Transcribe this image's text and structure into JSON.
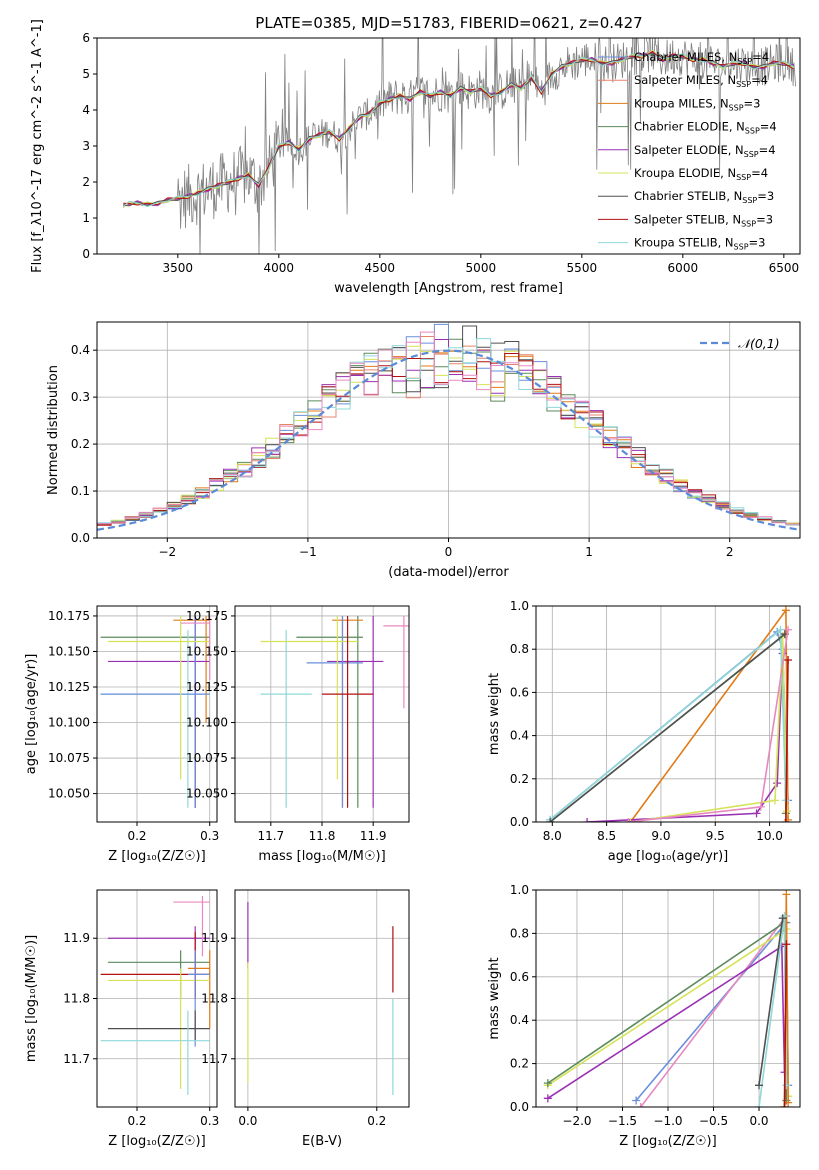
{
  "figure_title": "PLATE=0385, MJD=51783, FIBERID=0621, z=0.427",
  "colors": {
    "chabrier_miles": "#6a8fdc",
    "salpeter_miles": "#e7836c",
    "kroupa_miles": "#e07b18",
    "chabrier_elodie": "#5b8a5b",
    "salpeter_elodie": "#9b30b5",
    "kroupa_elodie": "#d6e35a",
    "chabrier_stelib": "#505050",
    "salpeter_stelib": "#b01010",
    "kroupa_stelib": "#8fd8d8",
    "pink": "#e888c0",
    "gauss": "#5b8ad8",
    "data_spectrum": "#808080"
  },
  "chart_data": [
    {
      "id": "spectrum",
      "type": "line",
      "xlabel": "wavelength [Angstrom, rest frame]",
      "ylabel": "Flux [f_λ10^-17 erg cm^-2 s^-1 A^-1]",
      "xlim": [
        3100,
        6580
      ],
      "ylim": [
        0,
        6
      ],
      "xticks": [
        3500,
        4000,
        4500,
        5000,
        5500,
        6000,
        6500
      ],
      "yticks": [
        0,
        1,
        2,
        3,
        4,
        5,
        6
      ],
      "legend_position": "upper-right",
      "legend": [
        "Chabrier MILES, N_SSP=4",
        "Salpeter MILES, N_SSP=4",
        "Kroupa MILES, N_SSP=3",
        "Chabrier ELODIE, N_SSP=4",
        "Salpeter ELODIE, N_SSP=4",
        "Kroupa ELODIE, N_SSP=4",
        "Chabrier STELIB, N_SSP=3",
        "Salpeter STELIB, N_SSP=3",
        "Kroupa STELIB, N_SSP=3"
      ],
      "model_curve": {
        "x": [
          3230,
          3260,
          3300,
          3350,
          3400,
          3450,
          3500,
          3550,
          3600,
          3650,
          3700,
          3750,
          3800,
          3850,
          3900,
          3950,
          4000,
          4050,
          4100,
          4150,
          4200,
          4250,
          4300,
          4350,
          4400,
          4450,
          4500,
          4550,
          4600,
          4650,
          4700,
          4750,
          4800,
          4850,
          4900,
          4950,
          5000,
          5050,
          5100,
          5150,
          5200,
          5250,
          5300,
          5350,
          5400,
          5450,
          5500,
          5550,
          5600,
          5650,
          5700,
          5750,
          5800,
          5850,
          5900,
          5950,
          6000,
          6050,
          6100,
          6150,
          6200,
          6250,
          6300,
          6350,
          6400,
          6450,
          6500,
          6550
        ],
        "y": [
          1.35,
          1.4,
          1.42,
          1.38,
          1.4,
          1.5,
          1.55,
          1.6,
          1.7,
          1.8,
          1.9,
          2.0,
          2.1,
          2.2,
          1.9,
          2.4,
          3.0,
          3.1,
          2.9,
          3.2,
          3.3,
          3.4,
          3.2,
          3.5,
          3.8,
          3.9,
          4.2,
          4.3,
          4.4,
          4.3,
          4.5,
          4.4,
          4.5,
          4.4,
          4.6,
          4.5,
          4.6,
          4.4,
          4.5,
          4.7,
          4.6,
          4.9,
          4.5,
          5.0,
          5.2,
          5.3,
          5.4,
          5.4,
          5.3,
          5.3,
          5.4,
          5.5,
          5.5,
          5.6,
          5.4,
          5.5,
          5.5,
          5.4,
          5.4,
          5.3,
          5.2,
          5.3,
          5.3,
          5.2,
          5.2,
          5.3,
          5.3,
          5.2
        ]
      }
    },
    {
      "id": "residuals",
      "type": "line",
      "xlabel": "(data-model)/error",
      "ylabel": "Normed distribution",
      "xlim": [
        -2.5,
        2.5
      ],
      "ylim": [
        0,
        0.46
      ],
      "xticks": [
        -2,
        -1,
        0,
        1,
        2
      ],
      "yticks": [
        0.0,
        0.1,
        0.2,
        0.3,
        0.4
      ],
      "legend_position": "upper-right",
      "legend": [
        "𝒩(0,1)"
      ],
      "grid": true
    },
    {
      "id": "age_vs_Z",
      "type": "scatter",
      "xlabel": "Z [log₁₀(Z/Z☉)]",
      "ylabel": "age  [log₁₀(age/yr)]",
      "xlim": [
        0.145,
        0.31
      ],
      "ylim": [
        10.03,
        10.182
      ],
      "xticks": [
        0.2,
        0.3
      ],
      "yticks": [
        10.05,
        10.075,
        10.1,
        10.125,
        10.15,
        10.175
      ],
      "grid": true,
      "points": [
        {
          "c": "chabrier_elodie",
          "x": 0.28,
          "y": 10.16,
          "xerr": [
            0.15,
            0.3
          ],
          "yerr": [
            10.04,
            10.175
          ]
        },
        {
          "c": "kroupa_miles",
          "x": 0.295,
          "y": 10.172,
          "xerr": [
            0.25,
            0.3
          ],
          "yerr": [
            10.1,
            10.175
          ]
        },
        {
          "c": "salpeter_elodie",
          "x": 0.28,
          "y": 10.143,
          "xerr": [
            0.16,
            0.3
          ],
          "yerr": [
            10.04,
            10.175
          ]
        },
        {
          "c": "kroupa_stelib",
          "x": 0.27,
          "y": 10.12,
          "xerr": [
            0.15,
            0.3
          ],
          "yerr": [
            10.04,
            10.165
          ]
        },
        {
          "c": "chabrier_miles",
          "x": 0.28,
          "y": 10.12,
          "xerr": [
            0.15,
            0.3
          ],
          "yerr": [
            10.04,
            10.175
          ]
        },
        {
          "c": "kroupa_elodie",
          "x": 0.26,
          "y": 10.157,
          "xerr": [
            0.16,
            0.3
          ],
          "yerr": [
            10.06,
            10.175
          ]
        },
        {
          "c": "pink",
          "x": 0.3,
          "y": 10.17,
          "xerr": [
            0.26,
            0.3
          ],
          "yerr": [
            10.13,
            10.175
          ]
        }
      ]
    },
    {
      "id": "age_vs_mass",
      "type": "scatter",
      "xlabel": "mass [log₁₀(M/M☉)]",
      "ylabel": "",
      "xlim": [
        11.63,
        11.97
      ],
      "ylim": [
        10.03,
        10.182
      ],
      "xticks": [
        11.7,
        11.8,
        11.9
      ],
      "yticks": [
        10.05,
        10.075,
        10.1,
        10.125,
        10.15,
        10.175
      ],
      "grid": true,
      "points": [
        {
          "c": "chabrier_elodie",
          "x": 11.87,
          "y": 10.16,
          "xerr": [
            11.75,
            11.88
          ],
          "yerr": [
            10.04,
            10.175
          ]
        },
        {
          "c": "kroupa_miles",
          "x": 11.84,
          "y": 10.172,
          "xerr": [
            11.82,
            11.88
          ],
          "yerr": [
            10.04,
            10.175
          ]
        },
        {
          "c": "salpeter_elodie",
          "x": 11.9,
          "y": 10.143,
          "xerr": [
            11.81,
            11.92
          ],
          "yerr": [
            10.04,
            10.175
          ]
        },
        {
          "c": "kroupa_stelib",
          "x": 11.73,
          "y": 10.12,
          "xerr": [
            11.68,
            11.78
          ],
          "yerr": [
            10.04,
            10.165
          ]
        },
        {
          "c": "chabrier_miles",
          "x": 11.84,
          "y": 10.142,
          "xerr": [
            11.77,
            11.88
          ],
          "yerr": [
            10.04,
            10.175
          ]
        },
        {
          "c": "kroupa_elodie",
          "x": 11.83,
          "y": 10.157,
          "xerr": [
            11.68,
            11.87
          ],
          "yerr": [
            10.06,
            10.175
          ]
        },
        {
          "c": "salpeter_stelib",
          "x": 11.85,
          "y": 10.12,
          "xerr": [
            11.8,
            11.9
          ],
          "yerr": [
            10.04,
            10.175
          ]
        },
        {
          "c": "pink",
          "x": 11.96,
          "y": 10.168,
          "xerr": [
            11.92,
            11.97
          ],
          "yerr": [
            10.11,
            10.175
          ]
        }
      ]
    },
    {
      "id": "massweight_vs_age",
      "type": "line",
      "xlabel": "age  [log₁₀(age/yr)]",
      "ylabel": "mass weight",
      "xlim": [
        7.85,
        10.28
      ],
      "ylim": [
        0,
        1.0
      ],
      "xticks": [
        8.0,
        8.5,
        9.0,
        9.5,
        10.0
      ],
      "yticks": [
        0.0,
        0.2,
        0.4,
        0.6,
        0.8,
        1.0
      ],
      "grid": true,
      "series": [
        {
          "c": "chabrier_miles",
          "x": [
            7.98,
            10.07,
            10.12,
            10.17
          ],
          "y": [
            0.01,
            0.88,
            0.8,
            0.1
          ]
        },
        {
          "c": "kroupa_miles",
          "x": [
            8.72,
            10.15,
            10.17
          ],
          "y": [
            0.0,
            0.98,
            0.01
          ]
        },
        {
          "c": "chabrier_elodie",
          "x": [
            7.98,
            10.12,
            10.15
          ],
          "y": [
            0.0,
            0.86,
            0.04
          ]
        },
        {
          "c": "salpeter_elodie",
          "x": [
            8.32,
            9.88,
            10.07,
            10.12
          ],
          "y": [
            0.0,
            0.04,
            0.18,
            0.78
          ]
        },
        {
          "c": "kroupa_elodie",
          "x": [
            8.72,
            10.05,
            10.12,
            10.16
          ],
          "y": [
            0.0,
            0.1,
            0.86,
            0.05
          ]
        },
        {
          "c": "kroupa_stelib",
          "x": [
            7.98,
            10.1,
            10.15
          ],
          "y": [
            0.01,
            0.89,
            0.1
          ]
        },
        {
          "c": "chabrier_stelib",
          "x": [
            7.98,
            10.14
          ],
          "y": [
            0.0,
            0.87
          ]
        },
        {
          "c": "salpeter_stelib",
          "x": [
            10.15,
            10.17
          ],
          "y": [
            0.0,
            0.75
          ]
        },
        {
          "c": "pink",
          "x": [
            8.7,
            9.92,
            10.17
          ],
          "y": [
            0.0,
            0.07,
            0.89
          ]
        }
      ]
    },
    {
      "id": "mass_vs_Z",
      "type": "scatter",
      "xlabel": "Z [log₁₀(Z/Z☉)]",
      "ylabel": "mass [log₁₀(M/M☉)]",
      "xlim": [
        0.145,
        0.31
      ],
      "ylim": [
        11.62,
        11.98
      ],
      "xticks": [
        0.2,
        0.3
      ],
      "yticks": [
        11.7,
        11.8,
        11.9
      ],
      "grid": true,
      "points": [
        {
          "c": "salpeter_elodie",
          "x": 0.28,
          "y": 11.9,
          "xerr": [
            0.16,
            0.3
          ],
          "yerr": [
            11.8,
            11.92
          ]
        },
        {
          "c": "pink",
          "x": 0.29,
          "y": 11.96,
          "xerr": [
            0.25,
            0.3
          ],
          "yerr": [
            11.87,
            11.97
          ]
        },
        {
          "c": "chabrier_elodie",
          "x": 0.26,
          "y": 11.86,
          "xerr": [
            0.16,
            0.3
          ],
          "yerr": [
            11.8,
            11.88
          ]
        },
        {
          "c": "kroupa_miles",
          "x": 0.3,
          "y": 11.85,
          "xerr": [
            0.27,
            0.3
          ],
          "yerr": [
            11.75,
            11.88
          ]
        },
        {
          "c": "salpeter_stelib",
          "x": 0.28,
          "y": 11.84,
          "xerr": [
            0.15,
            0.3
          ],
          "yerr": [
            11.8,
            11.91
          ]
        },
        {
          "c": "kroupa_elodie",
          "x": 0.26,
          "y": 11.83,
          "xerr": [
            0.16,
            0.3
          ],
          "yerr": [
            11.65,
            11.85
          ]
        },
        {
          "c": "chabrier_miles",
          "x": 0.28,
          "y": 11.84,
          "xerr": [
            0.27,
            0.3
          ],
          "yerr": [
            11.72,
            11.88
          ]
        },
        {
          "c": "chabrier_stelib",
          "x": 0.28,
          "y": 11.75,
          "xerr": [
            0.16,
            0.3
          ],
          "yerr": [
            11.73,
            11.78
          ]
        },
        {
          "c": "kroupa_stelib",
          "x": 0.27,
          "y": 11.73,
          "xerr": [
            0.15,
            0.3
          ],
          "yerr": [
            11.64,
            11.78
          ]
        }
      ]
    },
    {
      "id": "mass_vs_EBV",
      "type": "scatter",
      "xlabel": "E(B-V)",
      "ylabel": "",
      "xlim": [
        -0.02,
        0.25
      ],
      "ylim": [
        11.62,
        11.98
      ],
      "xticks": [
        0.0,
        0.2
      ],
      "yticks": [
        11.7,
        11.8,
        11.9
      ],
      "grid": true,
      "points": [
        {
          "c": "salpeter_elodie",
          "x": 0.0,
          "y": 11.9,
          "xerr": [
            0.0,
            0.0
          ],
          "yerr": [
            11.85,
            11.96
          ]
        },
        {
          "c": "kroupa_elodie",
          "x": 0.0,
          "y": 11.78,
          "xerr": [
            0.0,
            0.0
          ],
          "yerr": [
            11.66,
            11.86
          ]
        },
        {
          "c": "salpeter_stelib",
          "x": 0.225,
          "y": 11.86,
          "xerr": [
            0.225,
            0.225
          ],
          "yerr": [
            11.81,
            11.92
          ]
        },
        {
          "c": "kroupa_stelib",
          "x": 0.225,
          "y": 11.73,
          "xerr": [
            0.225,
            0.225
          ],
          "yerr": [
            11.64,
            11.8
          ]
        }
      ]
    },
    {
      "id": "massweight_vs_Z",
      "type": "line",
      "xlabel": "Z [log₁₀(Z/Z☉)]",
      "ylabel": "mass weight",
      "xlim": [
        -2.45,
        0.45
      ],
      "ylim": [
        0,
        1.0
      ],
      "xticks": [
        -2.0,
        -1.5,
        -1.0,
        -0.5,
        0.0
      ],
      "yticks": [
        0.0,
        0.2,
        0.4,
        0.6,
        0.8,
        1.0
      ],
      "grid": true,
      "series": [
        {
          "c": "chabrier_miles",
          "x": [
            -1.35,
            0.3,
            0.32
          ],
          "y": [
            0.03,
            0.85,
            0.1
          ]
        },
        {
          "c": "pink",
          "x": [
            -1.3,
            0.3,
            0.32
          ],
          "y": [
            0.0,
            0.88,
            0.05
          ]
        },
        {
          "c": "kroupa_elodie",
          "x": [
            -2.32,
            0.3,
            0.32
          ],
          "y": [
            0.1,
            0.82,
            0.05
          ]
        },
        {
          "c": "chabrier_elodie",
          "x": [
            -2.32,
            0.28,
            0.3
          ],
          "y": [
            0.11,
            0.85,
            0.03
          ]
        },
        {
          "c": "salpeter_elodie",
          "x": [
            -2.32,
            0.25,
            0.28
          ],
          "y": [
            0.04,
            0.74,
            0.16
          ]
        },
        {
          "c": "kroupa_miles",
          "x": [
            0.28,
            0.3,
            0.32
          ],
          "y": [
            0.0,
            0.98,
            0.02
          ]
        },
        {
          "c": "kroupa_stelib",
          "x": [
            0.0,
            0.28,
            0.3
          ],
          "y": [
            0.0,
            0.88,
            0.1
          ]
        },
        {
          "c": "salpeter_stelib",
          "x": [
            0.28,
            0.3
          ],
          "y": [
            0.0,
            0.75
          ]
        },
        {
          "c": "chabrier_stelib",
          "x": [
            0.0,
            0.26
          ],
          "y": [
            0.1,
            0.87
          ]
        }
      ]
    }
  ]
}
